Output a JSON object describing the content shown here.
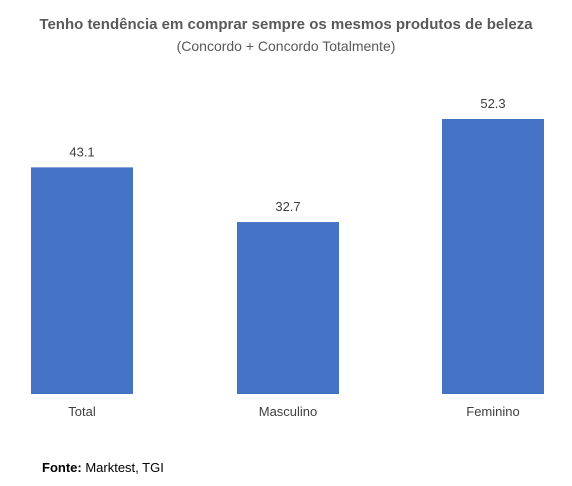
{
  "chart_data": {
    "type": "bar",
    "title": "Tenho tendência em comprar sempre os mesmos produtos de beleza",
    "subtitle": "(Concordo + Concordo Totalmente)",
    "categories": [
      "Total",
      "Masculino",
      "Feminino"
    ],
    "values": [
      43.1,
      32.7,
      52.3
    ],
    "value_labels": [
      "43.1",
      "32.7",
      "52.3"
    ],
    "xlabel": "",
    "ylabel": "",
    "ylim": [
      0,
      52.3
    ],
    "grid": false,
    "bar_color": "#4472C4"
  },
  "source": {
    "label": "Fonte:",
    "text": " Marktest, TGI"
  }
}
